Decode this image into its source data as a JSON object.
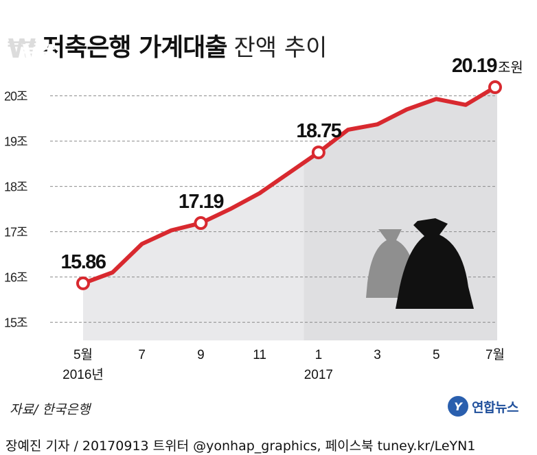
{
  "title": {
    "bold": "저축은행 가계대출",
    "light": "잔액 추이"
  },
  "source": "자료/ 한국은행",
  "logo": {
    "mark": "Y",
    "text": "연합뉴스"
  },
  "credit": "장예진 기자 / 20170913 트위터 @yonhap_graphics, 페이스북 tuney.kr/LeYN1",
  "colors": {
    "line": "#d8292f",
    "area": "#e9e9eb",
    "area_dark": "#dfdfe1",
    "grid": "#8a8a8a",
    "bag_back": "#8f8f8f",
    "bag_front": "#111111"
  },
  "icons": [
    "money-bag-icon",
    "money-bag-icon"
  ],
  "chart_data": {
    "type": "line",
    "x": [
      "2016-05",
      "2016-06",
      "2016-07",
      "2016-08",
      "2016-09",
      "2016-10",
      "2016-11",
      "2016-12",
      "2017-01",
      "2017-02",
      "2017-03",
      "2017-04",
      "2017-05",
      "2017-06",
      "2017-07"
    ],
    "values": [
      15.86,
      16.1,
      16.73,
      17.03,
      17.19,
      17.5,
      17.85,
      18.3,
      18.75,
      19.25,
      19.37,
      19.7,
      19.93,
      19.8,
      20.19
    ],
    "ylim": [
      14.6,
      20.6
    ],
    "yticks": [
      15,
      16,
      17,
      18,
      19,
      20
    ],
    "ytick_suffix": "조",
    "xtick_labels": [
      {
        "index": 0,
        "label": "5월",
        "sub": "2016년"
      },
      {
        "index": 2,
        "label": "7"
      },
      {
        "index": 4,
        "label": "9"
      },
      {
        "index": 6,
        "label": "11"
      },
      {
        "index": 8,
        "label": "1",
        "sub": "2017"
      },
      {
        "index": 10,
        "label": "3"
      },
      {
        "index": 12,
        "label": "5"
      },
      {
        "index": 14,
        "label": "7월"
      }
    ],
    "markers": [
      {
        "index": 0,
        "label": "15.86"
      },
      {
        "index": 4,
        "label": "17.19"
      },
      {
        "index": 8,
        "label": "18.75"
      },
      {
        "index": 14,
        "label": "20.19",
        "unit": "조원"
      }
    ],
    "shaded_from_index": 8,
    "grid": true
  }
}
